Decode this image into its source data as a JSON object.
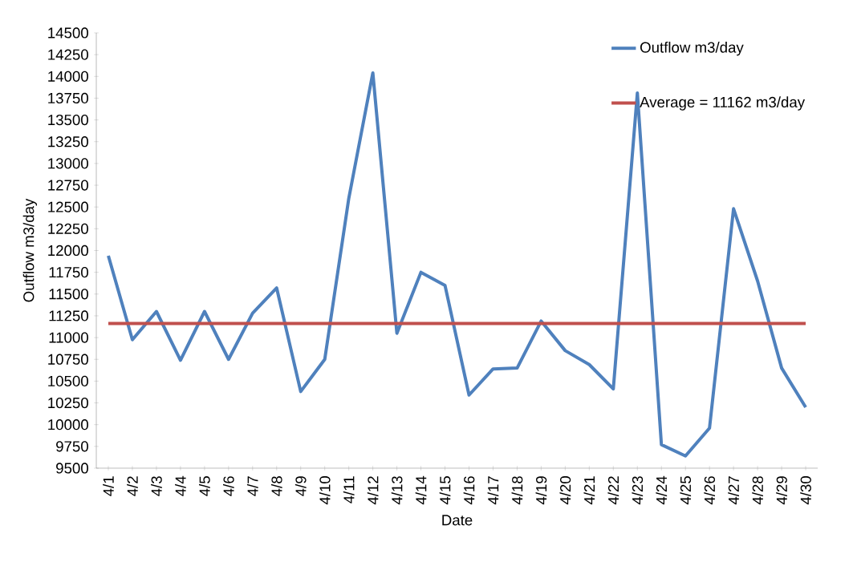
{
  "chart_data": {
    "type": "line",
    "xlabel": "Date",
    "ylabel": "Outflow m3/day",
    "categories": [
      "4/1",
      "4/2",
      "4/3",
      "4/4",
      "4/5",
      "4/6",
      "4/7",
      "4/8",
      "4/9",
      "4/10",
      "4/11",
      "4/12",
      "4/13",
      "4/14",
      "4/15",
      "4/16",
      "4/17",
      "4/18",
      "4/19",
      "4/20",
      "4/21",
      "4/22",
      "4/23",
      "4/24",
      "4/25",
      "4/26",
      "4/27",
      "4/28",
      "4/29",
      "4/30"
    ],
    "series": [
      {
        "name": "Outflow m3/day",
        "color": "#4f81bd",
        "values": [
          11940,
          10975,
          11300,
          10740,
          11300,
          10750,
          11280,
          11570,
          10380,
          10750,
          12600,
          14040,
          11050,
          11750,
          11600,
          10340,
          10640,
          10650,
          11190,
          10850,
          10690,
          10410,
          13810,
          9770,
          9640,
          9960,
          12480,
          11650,
          10650,
          10200
        ]
      },
      {
        "name": "Average = 11162  m3/day",
        "color": "#c0504d",
        "values": [
          11162,
          11162,
          11162,
          11162,
          11162,
          11162,
          11162,
          11162,
          11162,
          11162,
          11162,
          11162,
          11162,
          11162,
          11162,
          11162,
          11162,
          11162,
          11162,
          11162,
          11162,
          11162,
          11162,
          11162,
          11162,
          11162,
          11162,
          11162,
          11162,
          11162
        ]
      }
    ],
    "ylim": [
      9500,
      14500
    ],
    "yticks": [
      9500,
      9750,
      10000,
      10250,
      10500,
      10750,
      11000,
      11250,
      11500,
      11750,
      12000,
      12250,
      12500,
      12750,
      13000,
      13250,
      13500,
      13750,
      14000,
      14250,
      14500
    ],
    "legend": "top right",
    "line_style": "solid",
    "grid": false
  }
}
